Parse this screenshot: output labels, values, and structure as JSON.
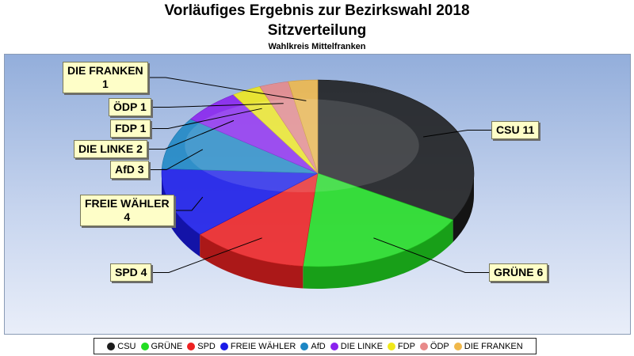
{
  "titles": {
    "main": "Vorläufiges Ergebnis zur Bezirkswahl 2018",
    "sub": "Sitzverteilung",
    "district": "Wahlkreis Mittelfranken"
  },
  "chart_data": {
    "type": "pie",
    "title": "Vorläufiges Ergebnis zur Bezirkswahl 2018",
    "subtitle": "Sitzverteilung",
    "categories": [
      "CSU",
      "GRÜNE",
      "SPD",
      "FREIE WÄHLER",
      "AfD",
      "DIE LINKE",
      "FDP",
      "ÖDP",
      "DIE FRANKEN"
    ],
    "values": [
      11,
      6,
      4,
      4,
      3,
      2,
      1,
      1,
      1
    ],
    "colors": [
      "#1c1c1c",
      "#22dd22",
      "#ee2222",
      "#1a1ae8",
      "#1c86c4",
      "#8a22ee",
      "#f0e81a",
      "#e88a8a",
      "#f0b84a"
    ],
    "legend_position": "bottom",
    "labels": [
      "CSU 11",
      "GRÜNE 6",
      "SPD 4",
      "FREIE WÄHLER 4",
      "AfD 3",
      "DIE LINKE 2",
      "FDP 1",
      "ÖDP 1",
      "DIE FRANKEN 1"
    ]
  }
}
